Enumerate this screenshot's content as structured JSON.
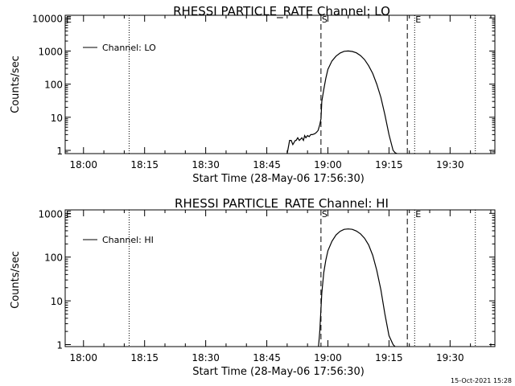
{
  "timestamp": "15-Oct-2021 15:28",
  "chart_data": [
    {
      "type": "line",
      "title": "RHESSI PARTICLE_RATE Channel: LO",
      "xlabel": "Start Time (28-May-06 17:56:30)",
      "ylabel": "Counts/sec",
      "yscale": "log",
      "ylim": [
        0.8,
        12000
      ],
      "xlim_minutes": [
        -4.5,
        101
      ],
      "x_tick_labels": [
        "18:00",
        "18:15",
        "18:30",
        "18:45",
        "19:00",
        "19:15",
        "19:30"
      ],
      "x_tick_minutes": [
        0,
        15,
        30,
        45,
        60,
        75,
        90
      ],
      "y_tick_labels": [
        "1",
        "10",
        "100",
        "1000",
        "10000"
      ],
      "y_tick_values": [
        1,
        10,
        100,
        1000,
        10000
      ],
      "legend": {
        "label": "Channel: LO",
        "placement": "top-left"
      },
      "markers": [
        {
          "label": "E",
          "minute": -4.5,
          "style": "dotted"
        },
        {
          "label": "",
          "minute": 11.2,
          "style": "dotted"
        },
        {
          "label": "S",
          "minute": 58.3,
          "style": "dashed"
        },
        {
          "label": "",
          "minute": 79.5,
          "style": "dashed"
        },
        {
          "label": "E",
          "minute": 81.3,
          "style": "dotted"
        },
        {
          "label": "",
          "minute": 96.2,
          "style": "dotted"
        }
      ],
      "series": [
        {
          "name": "Channel: LO",
          "x": [
            50.0,
            50.6,
            51.0,
            51.4,
            52.0,
            52.2,
            52.6,
            53.0,
            53.6,
            54.0,
            54.3,
            54.6,
            55.0,
            55.4,
            55.8,
            56.2,
            56.8,
            57.2,
            57.6,
            58.0,
            58.3,
            58.5,
            59.0,
            59.5,
            60.0,
            61.0,
            62.0,
            63.0,
            64.0,
            65.0,
            66.0,
            67.0,
            68.0,
            69.0,
            70.0,
            71.0,
            72.0,
            73.0,
            74.0,
            75.0,
            76.0,
            76.5,
            77.0
          ],
          "y": [
            0.8,
            2,
            2,
            1.5,
            2,
            2,
            2.4,
            2,
            2.4,
            2,
            2.8,
            2.4,
            2.8,
            2.6,
            3,
            3,
            3.2,
            3.5,
            4,
            6,
            9,
            30,
            70,
            150,
            280,
            500,
            700,
            870,
            980,
            1000,
            970,
            880,
            730,
            550,
            360,
            210,
            100,
            40,
            12,
            3,
            1,
            0.85,
            0.8
          ]
        }
      ]
    },
    {
      "type": "line",
      "title": "RHESSI PARTICLE_RATE Channel: HI",
      "xlabel": "Start Time (28-May-06 17:56:30)",
      "ylabel": "Counts/sec",
      "yscale": "log",
      "ylim": [
        0.9,
        1200
      ],
      "xlim_minutes": [
        -4.5,
        101
      ],
      "x_tick_labels": [
        "18:00",
        "18:15",
        "18:30",
        "18:45",
        "19:00",
        "19:15",
        "19:30"
      ],
      "x_tick_minutes": [
        0,
        15,
        30,
        45,
        60,
        75,
        90
      ],
      "y_tick_labels": [
        "1",
        "10",
        "100",
        "1000"
      ],
      "y_tick_values": [
        1,
        10,
        100,
        1000
      ],
      "legend": {
        "label": "Channel: HI",
        "placement": "top-left"
      },
      "markers": [
        {
          "label": "E",
          "minute": -4.5,
          "style": "dotted"
        },
        {
          "label": "",
          "minute": 11.2,
          "style": "dotted"
        },
        {
          "label": "S",
          "minute": 58.3,
          "style": "dashed"
        },
        {
          "label": "",
          "minute": 79.5,
          "style": "dashed"
        },
        {
          "label": "E",
          "minute": 81.3,
          "style": "dotted"
        },
        {
          "label": "",
          "minute": 96.2,
          "style": "dotted"
        }
      ],
      "series": [
        {
          "name": "Channel: HI",
          "x": [
            57.7,
            58.0,
            58.5,
            59.0,
            59.5,
            60.0,
            61.0,
            62.0,
            63.0,
            64.0,
            65.0,
            66.0,
            67.0,
            68.0,
            69.0,
            70.0,
            71.0,
            72.0,
            73.0,
            74.0,
            75.0,
            76.0,
            76.5
          ],
          "y": [
            0.9,
            2,
            15,
            45,
            85,
            140,
            230,
            320,
            390,
            430,
            440,
            430,
            395,
            340,
            270,
            190,
            110,
            50,
            18,
            5,
            1.6,
            1.0,
            0.9
          ]
        }
      ]
    }
  ]
}
